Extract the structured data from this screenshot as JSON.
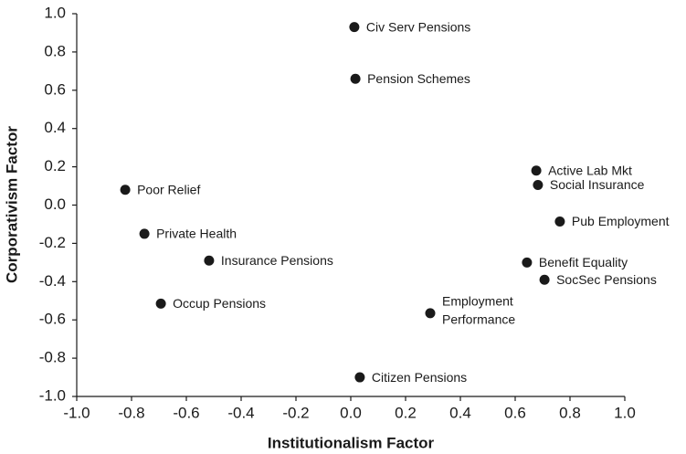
{
  "chart_data": {
    "type": "scatter",
    "xlabel": "Institutionalism Factor",
    "ylabel": "Corporativism Factor",
    "color": "#1a1a1a",
    "series": [
      {
        "name": null,
        "labels": [
          "Civ Serv Pensions",
          "Pension Schemes",
          "Active Lab Mkt",
          "Social Insurance",
          "Poor Relief",
          "Pub Employment",
          "Private Health",
          "Insurance Pensions",
          "Benefit Equality",
          "SocSec Pensions",
          "Occup Pensions",
          [
            "Employment",
            "Performance"
          ],
          "Citizen Pensions"
        ],
        "x": [
          0.013,
          0.017,
          0.677,
          0.683,
          -0.823,
          0.763,
          -0.753,
          -0.517,
          0.643,
          0.707,
          -0.693,
          0.29,
          0.033
        ],
        "values": [
          0.93,
          0.66,
          0.18,
          0.105,
          0.08,
          -0.086,
          -0.15,
          -0.29,
          -0.3,
          -0.39,
          -0.515,
          -0.565,
          -0.9
        ]
      }
    ],
    "xlim": [
      -1,
      1
    ],
    "ylim": [
      -1,
      1
    ],
    "xticks": [
      {
        "value": -1,
        "label": "-1.0"
      },
      {
        "value": -0.8,
        "label": "-0.8"
      },
      {
        "value": -0.6,
        "label": "-0.6"
      },
      {
        "value": -0.4,
        "label": "-0.4"
      },
      {
        "value": -0.2,
        "label": "-0.2"
      },
      {
        "value": 0,
        "label": "0.0"
      },
      {
        "value": 0.2,
        "label": "0.2"
      },
      {
        "value": 0.4,
        "label": "0.4"
      },
      {
        "value": 0.6,
        "label": "0.6"
      },
      {
        "value": 0.8,
        "label": "0.8"
      },
      {
        "value": 1,
        "label": "1.0"
      }
    ],
    "yticks": [
      {
        "value": -1,
        "label": "-1.0"
      },
      {
        "value": -0.8,
        "label": "-0.8"
      },
      {
        "value": -0.6,
        "label": "-0.6"
      },
      {
        "value": -0.4,
        "label": "-0.4"
      },
      {
        "value": -0.2,
        "label": "-0.2"
      },
      {
        "value": 0,
        "label": "0.0"
      },
      {
        "value": 0.2,
        "label": "0.2"
      },
      {
        "value": 0.4,
        "label": "0.4"
      },
      {
        "value": 0.6,
        "label": "0.6"
      },
      {
        "value": 0.8,
        "label": "0.8"
      },
      {
        "value": 1,
        "label": "1.0"
      }
    ],
    "grid": false
  }
}
